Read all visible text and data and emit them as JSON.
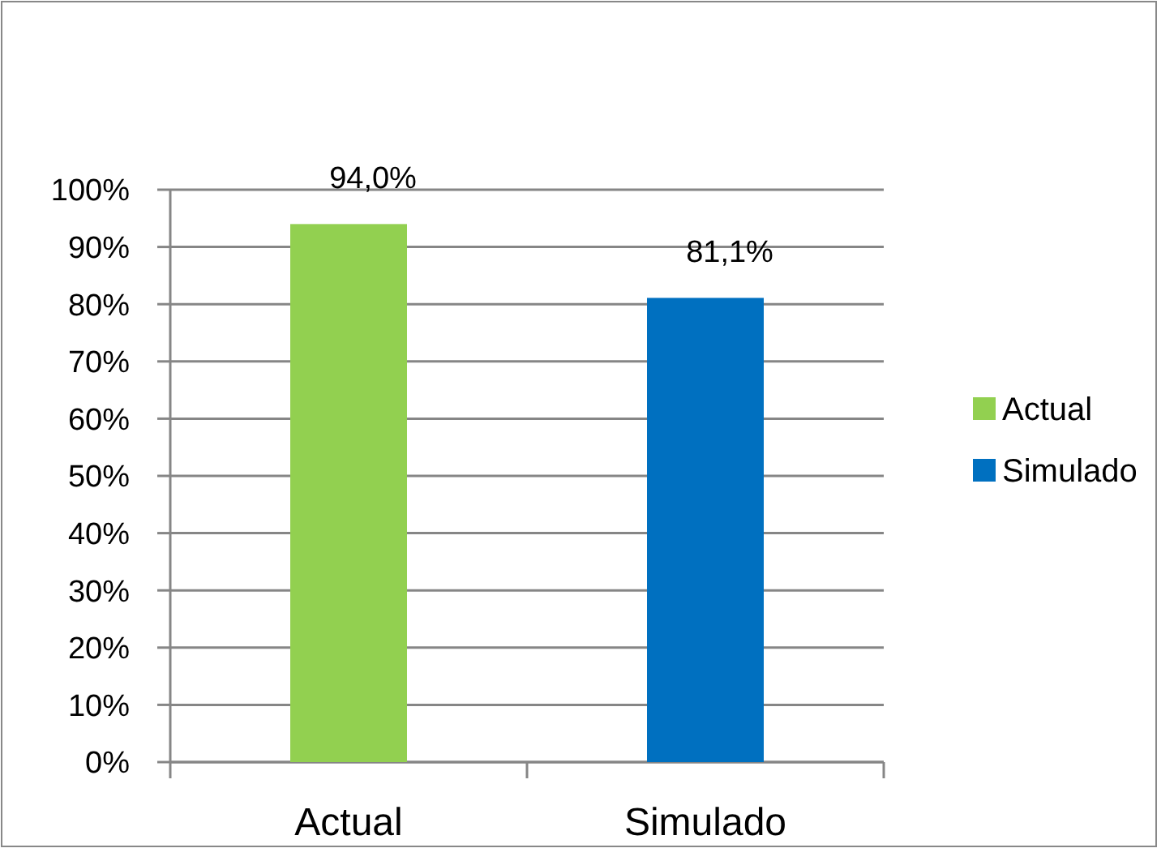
{
  "chart_data": {
    "type": "bar",
    "categories": [
      "Actual",
      "Simulado"
    ],
    "series": [
      {
        "name": "Actual",
        "color": "#92d050",
        "values": [
          94.0,
          null
        ],
        "value_labels": [
          "94,0%",
          null
        ]
      },
      {
        "name": "Simulado",
        "color": "#0070c0",
        "values": [
          null,
          81.1
        ],
        "value_labels": [
          null,
          "81,1%"
        ]
      }
    ],
    "ylim": [
      0,
      100
    ],
    "yticks": [
      {
        "value": 0,
        "label": "0%"
      },
      {
        "value": 10,
        "label": "10%"
      },
      {
        "value": 20,
        "label": "20%"
      },
      {
        "value": 30,
        "label": "30%"
      },
      {
        "value": 40,
        "label": "40%"
      },
      {
        "value": 50,
        "label": "50%"
      },
      {
        "value": 60,
        "label": "60%"
      },
      {
        "value": 70,
        "label": "70%"
      },
      {
        "value": 80,
        "label": "80%"
      },
      {
        "value": 90,
        "label": "90%"
      },
      {
        "value": 100,
        "label": "100%"
      }
    ],
    "grid": "y",
    "legend": "right"
  }
}
